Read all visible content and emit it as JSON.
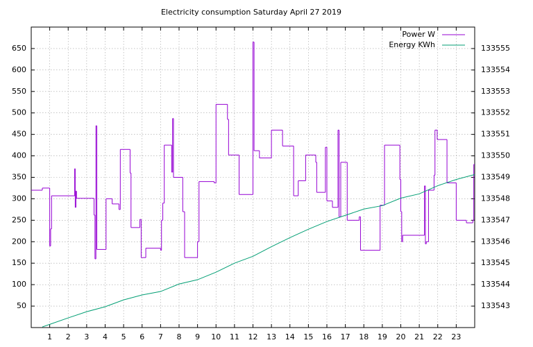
{
  "chart_data": {
    "type": "line",
    "title": "Electricity consumption Saturday April 27 2019",
    "xlim": [
      0,
      24
    ],
    "xticks": [
      1,
      2,
      3,
      4,
      5,
      6,
      7,
      8,
      9,
      10,
      11,
      12,
      13,
      14,
      15,
      16,
      17,
      18,
      19,
      20,
      21,
      22,
      23
    ],
    "ylim": [
      0,
      700
    ],
    "yticks": [
      50,
      100,
      150,
      200,
      250,
      300,
      350,
      400,
      450,
      500,
      550,
      600,
      650
    ],
    "y2lim": [
      133542,
      133556
    ],
    "y2ticks": [
      133543,
      133544,
      133545,
      133546,
      133547,
      133548,
      133549,
      133550,
      133551,
      133552,
      133553,
      133554,
      133555
    ],
    "grid": true,
    "legend": "top-right",
    "series": [
      {
        "name": "Power W",
        "color": "#9400d3",
        "style": "steps",
        "x": [
          0,
          0.6,
          1.0,
          1.05,
          1.1,
          2.35,
          2.38,
          2.42,
          2.45,
          3.4,
          3.45,
          3.5,
          3.55,
          4.05,
          4.38,
          4.75,
          4.82,
          5.35,
          5.4,
          5.88,
          5.95,
          6.2,
          7.0,
          7.05,
          7.12,
          7.2,
          7.6,
          7.65,
          7.7,
          8.2,
          8.3,
          9.0,
          9.08,
          9.9,
          10.0,
          10.62,
          10.68,
          11.25,
          12.0,
          12.06,
          12.35,
          13.0,
          13.6,
          14.2,
          14.45,
          14.85,
          15.4,
          15.45,
          15.92,
          16.0,
          16.3,
          16.6,
          16.66,
          16.75,
          17.1,
          17.75,
          17.82,
          18.88,
          19.12,
          19.95,
          20.0,
          20.05,
          20.1,
          21.28,
          21.33,
          21.38,
          21.5,
          21.8,
          21.85,
          21.97,
          22.5,
          23.0,
          23.55,
          23.9,
          23.95
        ],
        "values": [
          320,
          325,
          190,
          230,
          307,
          370,
          280,
          318,
          301,
          262,
          160,
          470,
          182,
          300,
          288,
          275,
          415,
          360,
          233,
          252,
          163,
          185,
          180,
          250,
          290,
          425,
          362,
          487,
          350,
          270,
          163,
          200,
          340,
          337,
          520,
          485,
          402,
          310,
          665,
          412,
          395,
          460,
          423,
          307,
          342,
          402,
          385,
          315,
          420,
          295,
          280,
          460,
          258,
          385,
          250,
          258,
          180,
          285,
          425,
          345,
          270,
          200,
          215,
          330,
          195,
          200,
          320,
          355,
          460,
          438,
          337,
          250,
          244,
          250,
          380
        ]
      },
      {
        "name": "Energy KWh",
        "color": "#009e73",
        "axis": "y2",
        "x": [
          0.6,
          1,
          2,
          3,
          4,
          5,
          6,
          7,
          8,
          9,
          10,
          11,
          12,
          13,
          14,
          15,
          16,
          17,
          18,
          19,
          20,
          21,
          22,
          23,
          24
        ],
        "values": [
          133542.03,
          133542.15,
          133542.45,
          133542.74,
          133542.97,
          133543.29,
          133543.52,
          133543.68,
          133544.03,
          133544.23,
          133544.58,
          133545.0,
          133545.32,
          133545.77,
          133546.19,
          133546.58,
          133546.94,
          133547.23,
          133547.52,
          133547.68,
          133548.03,
          133548.23,
          133548.61,
          133548.9,
          133549.13
        ]
      }
    ]
  }
}
